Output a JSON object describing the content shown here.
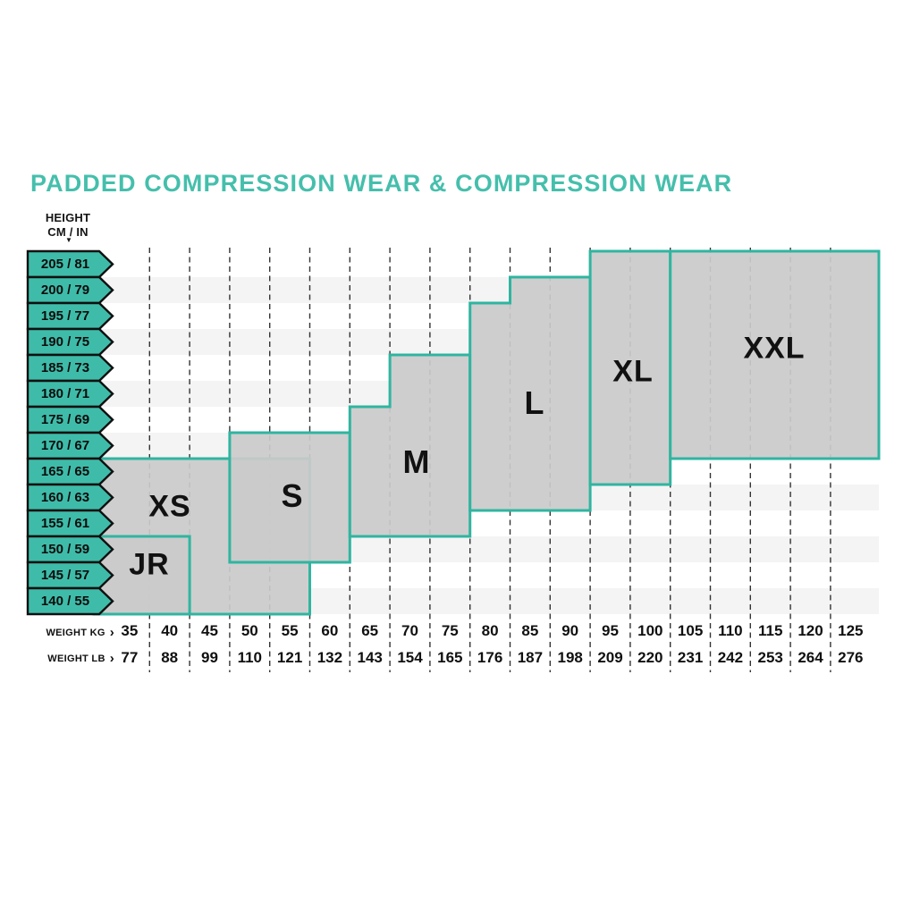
{
  "title": "PADDED COMPRESSION WEAR & COMPRESSION WEAR",
  "height_axis": {
    "line1": "HEIGHT",
    "line2": "CM / IN",
    "marker": "▼"
  },
  "height_rows": [
    "205 / 81",
    "200 / 79",
    "195 / 77",
    "190 / 75",
    "185 / 73",
    "180 / 71",
    "175 / 69",
    "170 / 67",
    "165 / 65",
    "160 / 63",
    "155 / 61",
    "150 / 59",
    "145 / 57",
    "140 / 55"
  ],
  "weight_axis": {
    "kg_label": "WEIGHT KG",
    "lb_label": "WEIGHT LB",
    "chevron": "›"
  },
  "weight_kg": [
    "35",
    "40",
    "45",
    "50",
    "55",
    "60",
    "65",
    "70",
    "75",
    "80",
    "85",
    "90",
    "95",
    "100",
    "105",
    "110",
    "115",
    "120",
    "125"
  ],
  "weight_lb": [
    "77",
    "88",
    "99",
    "110",
    "121",
    "132",
    "143",
    "154",
    "165",
    "176",
    "187",
    "198",
    "209",
    "220",
    "231",
    "242",
    "253",
    "264",
    "276"
  ],
  "sizes": [
    {
      "label": "JR"
    },
    {
      "label": "XS"
    },
    {
      "label": "S"
    },
    {
      "label": "M"
    },
    {
      "label": "L"
    },
    {
      "label": "XL"
    },
    {
      "label": "XXL"
    }
  ],
  "colors": {
    "accent_teal": "#45BFAC",
    "arrow_fill": "#3EBCA9",
    "region_border": "#2FB5A0",
    "region_fill": "#CACACA",
    "stripe": "#F4F4F4",
    "dash": "#333333",
    "text_black": "#101010"
  },
  "chart_data": {
    "type": "heatmap",
    "title": "PADDED COMPRESSION WEAR & COMPRESSION WEAR",
    "xlabel": "WEIGHT KG / WEIGHT LB",
    "ylabel": "HEIGHT CM / IN",
    "x_ticks_kg": [
      35,
      40,
      45,
      50,
      55,
      60,
      65,
      70,
      75,
      80,
      85,
      90,
      95,
      100,
      105,
      110,
      115,
      120,
      125
    ],
    "x_ticks_lb": [
      77,
      88,
      99,
      110,
      121,
      132,
      143,
      154,
      165,
      176,
      187,
      198,
      209,
      220,
      231,
      242,
      253,
      264,
      276
    ],
    "y_ticks_cm": [
      205,
      200,
      195,
      190,
      185,
      180,
      175,
      170,
      165,
      160,
      155,
      150,
      145,
      140
    ],
    "y_ticks_in": [
      81,
      79,
      77,
      75,
      73,
      71,
      69,
      67,
      65,
      63,
      61,
      59,
      57,
      55
    ],
    "grid": "dashed-vertical",
    "regions": [
      {
        "size": "JR",
        "steps": [
          {
            "weight_kg": [
              35,
              40
            ],
            "height_cm": [
              140,
              150
            ]
          }
        ]
      },
      {
        "size": "XS",
        "steps": [
          {
            "weight_kg": [
              35,
              55
            ],
            "height_cm": [
              140,
              165
            ]
          }
        ]
      },
      {
        "size": "S",
        "steps": [
          {
            "weight_kg": [
              50,
              60
            ],
            "height_cm": [
              150,
              170
            ]
          }
        ]
      },
      {
        "size": "M",
        "steps": [
          {
            "weight_kg": [
              65,
              65
            ],
            "height_cm": [
              160,
              175
            ]
          },
          {
            "weight_kg": [
              70,
              75
            ],
            "height_cm": [
              160,
              185
            ]
          }
        ]
      },
      {
        "size": "L",
        "steps": [
          {
            "weight_kg": [
              80,
              80
            ],
            "height_cm": [
              160,
              195
            ]
          },
          {
            "weight_kg": [
              85,
              90
            ],
            "height_cm": [
              160,
              200
            ]
          }
        ]
      },
      {
        "size": "XL",
        "steps": [
          {
            "weight_kg": [
              95,
              100
            ],
            "height_cm": [
              165,
              205
            ]
          }
        ]
      },
      {
        "size": "XXL",
        "steps": [
          {
            "weight_kg": [
              105,
              125
            ],
            "height_cm": [
              170,
              205
            ]
          }
        ]
      }
    ]
  }
}
